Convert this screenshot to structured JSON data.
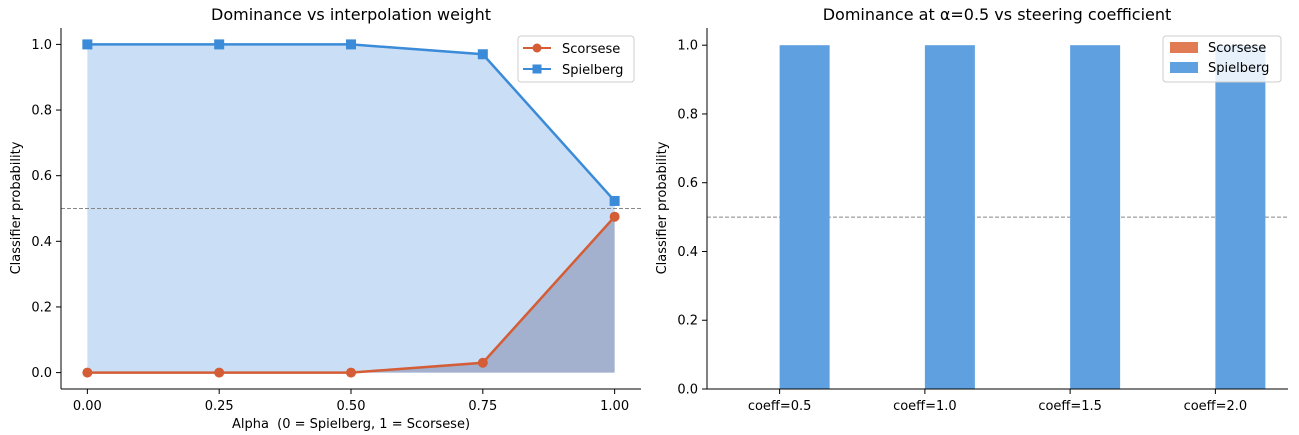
{
  "chart_data": [
    {
      "type": "line",
      "title": "Dominance vs interpolation weight",
      "xlabel": "Alpha  (0 = Spielberg, 1 = Scorsese)",
      "ylabel": "Classifier probability",
      "x": [
        0.0,
        0.25,
        0.5,
        0.75,
        1.0
      ],
      "x_tick_labels": [
        "0.00",
        "0.25",
        "0.50",
        "0.75",
        "1.00"
      ],
      "y_tick_labels": [
        "0.0",
        "0.2",
        "0.4",
        "0.6",
        "0.8",
        "1.0"
      ],
      "xlim": [
        -0.05,
        1.05
      ],
      "ylim": [
        -0.05,
        1.05
      ],
      "reference_line": 0.5,
      "legend_position": "top-right",
      "series": [
        {
          "name": "Scorsese",
          "values": [
            0.0,
            0.0,
            0.0,
            0.03,
            0.475
          ],
          "color": "#d45d36",
          "marker": "circle",
          "fill": true
        },
        {
          "name": "Spielberg",
          "values": [
            1.0,
            1.0,
            1.0,
            0.97,
            0.523
          ],
          "color": "#3b8bd8",
          "marker": "square",
          "fill": true
        }
      ]
    },
    {
      "type": "bar",
      "title": "Dominance at α=0.5 vs steering coefficient",
      "xlabel": "",
      "ylabel": "Classifier probability",
      "categories": [
        "coeff=0.5",
        "coeff=1.0",
        "coeff=1.5",
        "coeff=2.0"
      ],
      "y_tick_labels": [
        "0.0",
        "0.2",
        "0.4",
        "0.6",
        "0.8",
        "1.0"
      ],
      "ylim": [
        0,
        1.05
      ],
      "reference_line": 0.5,
      "legend_position": "top-right",
      "series": [
        {
          "name": "Scorsese",
          "values": [
            0.0,
            0.0,
            0.0,
            0.0
          ],
          "color": "#e07b54"
        },
        {
          "name": "Spielberg",
          "values": [
            1.0,
            1.0,
            1.0,
            1.0
          ],
          "color": "#5fa0e0"
        }
      ]
    }
  ]
}
